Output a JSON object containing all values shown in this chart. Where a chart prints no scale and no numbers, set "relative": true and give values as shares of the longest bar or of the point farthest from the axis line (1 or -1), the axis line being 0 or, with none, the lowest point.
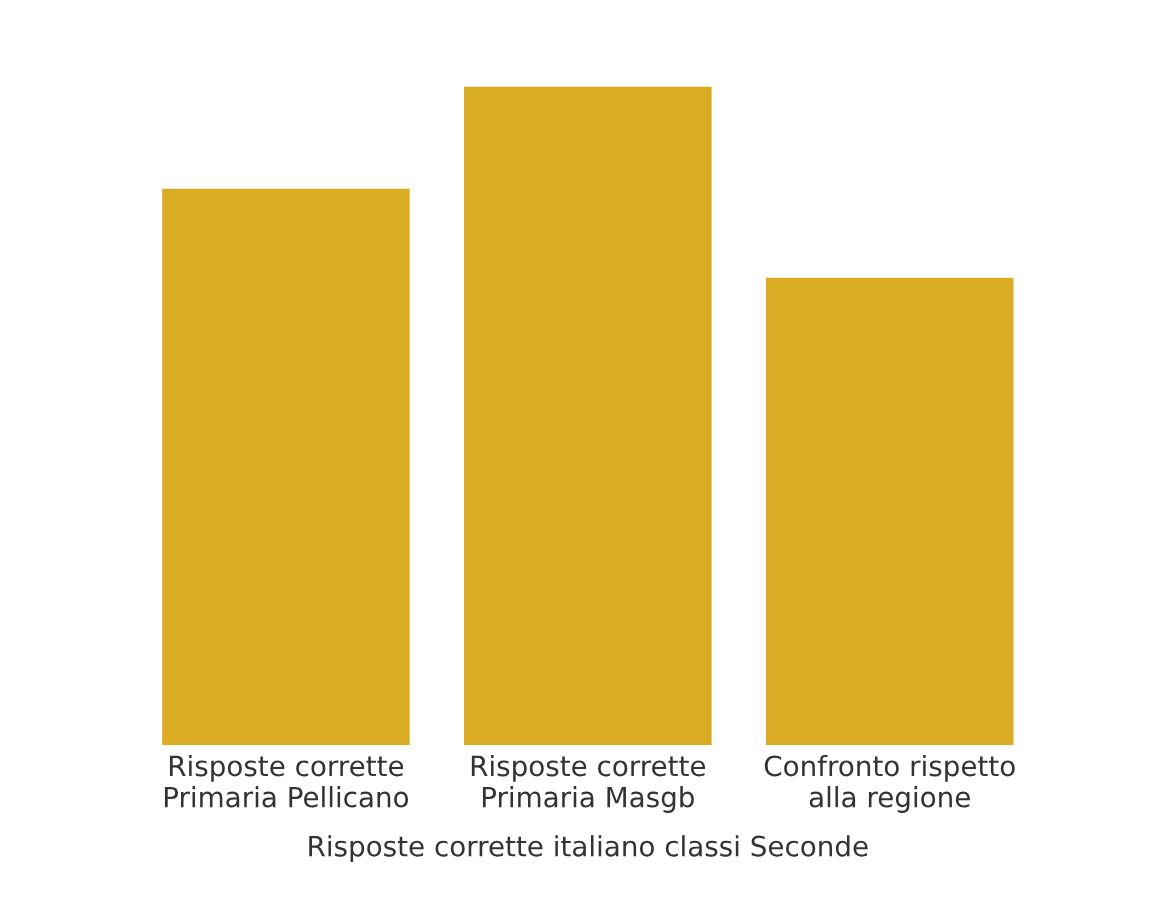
{
  "chart_data": {
    "type": "bar",
    "relative": true,
    "categories": [
      "Risposte corrette\nPrimaria Pellicano",
      "Risposte corrette\nPrimaria Masgb",
      "Confronto rispetto\nalla regione"
    ],
    "values": [
      0.845,
      1,
      0.71
    ],
    "color": "#d9ac24",
    "xlabel": "Risposte corrette italiano classi Seconde",
    "grid": false
  }
}
